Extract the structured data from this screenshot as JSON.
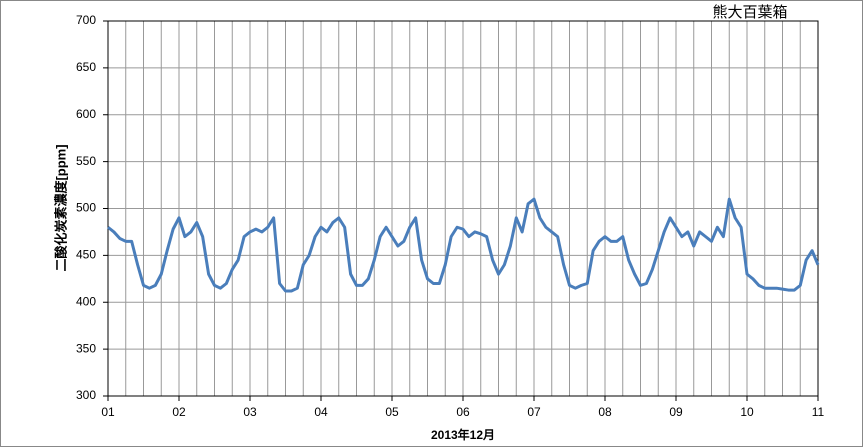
{
  "chart_data": {
    "type": "line",
    "title": "熊大百葉箱",
    "y_label": "二酸化炭素濃度[ppm]",
    "x_label": "2013年12月",
    "x": [
      1,
      1.083,
      1.167,
      1.25,
      1.333,
      1.417,
      1.5,
      1.583,
      1.667,
      1.75,
      1.833,
      1.917,
      2,
      2.083,
      2.167,
      2.25,
      2.333,
      2.417,
      2.5,
      2.583,
      2.667,
      2.75,
      2.833,
      2.917,
      3,
      3.083,
      3.167,
      3.25,
      3.333,
      3.417,
      3.5,
      3.583,
      3.667,
      3.75,
      3.833,
      3.917,
      4,
      4.083,
      4.167,
      4.25,
      4.333,
      4.417,
      4.5,
      4.583,
      4.667,
      4.75,
      4.833,
      4.917,
      5,
      5.083,
      5.167,
      5.25,
      5.333,
      5.417,
      5.5,
      5.583,
      5.667,
      5.75,
      5.833,
      5.917,
      6,
      6.083,
      6.167,
      6.25,
      6.333,
      6.417,
      6.5,
      6.583,
      6.667,
      6.75,
      6.833,
      6.917,
      7,
      7.083,
      7.167,
      7.25,
      7.333,
      7.417,
      7.5,
      7.583,
      7.667,
      7.75,
      7.833,
      7.917,
      8,
      8.083,
      8.167,
      8.25,
      8.333,
      8.417,
      8.5,
      8.583,
      8.667,
      8.75,
      8.833,
      8.917,
      9,
      9.083,
      9.167,
      9.25,
      9.333,
      9.417,
      9.5,
      9.583,
      9.667,
      9.75,
      9.833,
      9.917,
      10,
      10.083,
      10.167,
      10.25,
      10.333,
      10.417,
      10.5,
      10.583,
      10.667,
      10.75,
      10.833,
      10.917,
      11
    ],
    "series": [
      {
        "color": "#4a7ebb",
        "values": [
          480,
          475,
          468,
          465,
          465,
          440,
          418,
          415,
          418,
          430,
          455,
          478,
          490,
          470,
          475,
          485,
          470,
          430,
          418,
          415,
          420,
          435,
          445,
          470,
          475,
          478,
          475,
          480,
          490,
          420,
          412,
          412,
          415,
          440,
          450,
          470,
          480,
          475,
          485,
          490,
          480,
          430,
          418,
          418,
          425,
          445,
          470,
          480,
          470,
          460,
          465,
          480,
          490,
          445,
          425,
          420,
          420,
          440,
          470,
          480,
          478,
          470,
          475,
          473,
          470,
          445,
          430,
          440,
          460,
          490,
          475,
          505,
          510,
          490,
          480,
          475,
          470,
          440,
          418,
          415,
          418,
          420,
          455,
          465,
          470,
          465,
          465,
          470,
          445,
          430,
          418,
          420,
          435,
          455,
          475,
          490,
          480,
          470,
          475,
          460,
          475,
          470,
          465,
          480,
          470,
          510,
          490,
          480,
          430,
          425,
          418,
          415,
          415,
          415,
          414,
          413,
          413,
          418,
          445,
          455,
          440
        ]
      }
    ],
    "xlim": [
      1,
      11
    ],
    "xticks": [
      {
        "value": 1,
        "label": "01"
      },
      {
        "value": 2,
        "label": "02"
      },
      {
        "value": 3,
        "label": "03"
      },
      {
        "value": 4,
        "label": "04"
      },
      {
        "value": 5,
        "label": "05"
      },
      {
        "value": 6,
        "label": "06"
      },
      {
        "value": 7,
        "label": "07"
      },
      {
        "value": 8,
        "label": "08"
      },
      {
        "value": 9,
        "label": "09"
      },
      {
        "value": 10,
        "label": "10"
      },
      {
        "value": 11,
        "label": "11"
      }
    ],
    "xgrid_step": 0.25,
    "ylim": [
      300,
      700
    ],
    "yticks": [
      300,
      350,
      400,
      450,
      500,
      550,
      600,
      650,
      700
    ],
    "grid": true
  }
}
